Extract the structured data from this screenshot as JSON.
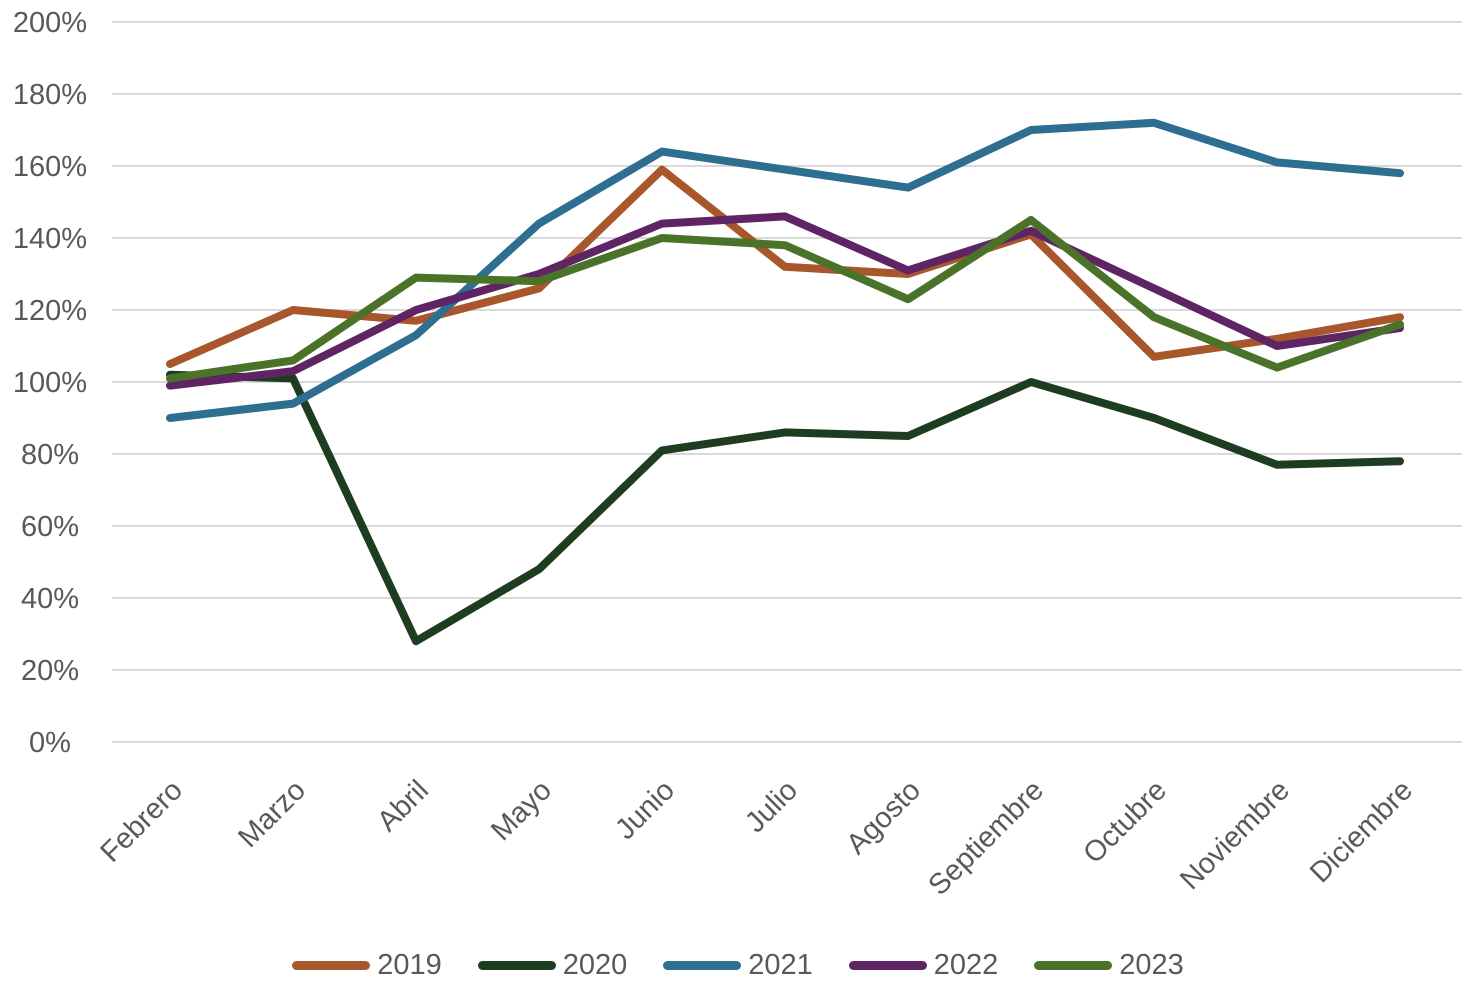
{
  "chart_data": {
    "type": "line",
    "title": "",
    "xlabel": "",
    "ylabel": "",
    "categories": [
      "Febrero",
      "Marzo",
      "Abril",
      "Mayo",
      "Junio",
      "Julio",
      "Agosto",
      "Septiembre",
      "Octubre",
      "Noviembre",
      "Diciembre"
    ],
    "series": [
      {
        "name": "2019",
        "color": "#A8562B",
        "values": [
          105,
          120,
          117,
          126,
          159,
          132,
          130,
          141,
          107,
          112,
          118
        ]
      },
      {
        "name": "2020",
        "color": "#1E3D20",
        "values": [
          102,
          101,
          28,
          48,
          81,
          86,
          85,
          100,
          90,
          77,
          78
        ]
      },
      {
        "name": "2021",
        "color": "#2E6E91",
        "values": [
          90,
          94,
          113,
          144,
          164,
          159,
          154,
          170,
          172,
          161,
          158
        ]
      },
      {
        "name": "2022",
        "color": "#5F2464",
        "values": [
          99,
          103,
          120,
          130,
          144,
          146,
          131,
          142,
          126,
          110,
          115
        ]
      },
      {
        "name": "2023",
        "color": "#4A7329",
        "values": [
          101,
          106,
          129,
          128,
          140,
          138,
          123,
          145,
          118,
          104,
          116
        ]
      }
    ],
    "ylim": [
      0,
      200
    ],
    "ytick_step": 20,
    "ytick_labels": [
      "0%",
      "20%",
      "40%",
      "60%",
      "80%",
      "100%",
      "120%",
      "140%",
      "160%",
      "180%",
      "200%"
    ],
    "grid": true,
    "legend_position": "bottom",
    "axis_text_color": "#595959",
    "gridline_color": "#D9D9D9",
    "background": "#FFFFFF"
  }
}
